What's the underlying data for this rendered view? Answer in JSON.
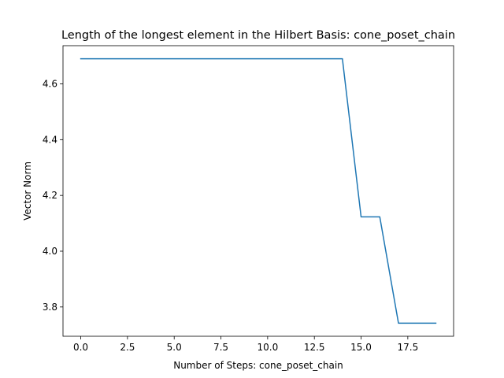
{
  "chart_data": {
    "type": "line",
    "title": "Length of the longest element in the Hilbert Basis: cone_poset_chain",
    "xlabel": "Number of Steps: cone_poset_chain",
    "ylabel": "Vector Norm",
    "xlim": [
      -0.95,
      19.95
    ],
    "ylim": [
      3.695,
      4.737
    ],
    "xticks": [
      0.0,
      2.5,
      5.0,
      7.5,
      10.0,
      12.5,
      15.0,
      17.5
    ],
    "xtick_labels": [
      "0.0",
      "2.5",
      "5.0",
      "7.5",
      "10.0",
      "12.5",
      "15.0",
      "17.5"
    ],
    "yticks": [
      3.8,
      4.0,
      4.2,
      4.4,
      4.6
    ],
    "ytick_labels": [
      "3.8",
      "4.0",
      "4.2",
      "4.4",
      "4.6"
    ],
    "grid": false,
    "legend": "none",
    "series": [
      {
        "color": "#1f77b4",
        "x": [
          0,
          1,
          2,
          3,
          4,
          5,
          6,
          7,
          8,
          9,
          10,
          11,
          12,
          13,
          14,
          15,
          16,
          17,
          18,
          19
        ],
        "values": [
          4.69,
          4.69,
          4.69,
          4.69,
          4.69,
          4.69,
          4.69,
          4.69,
          4.69,
          4.69,
          4.69,
          4.69,
          4.69,
          4.69,
          4.69,
          4.123,
          4.123,
          3.742,
          3.742,
          3.742
        ]
      }
    ]
  }
}
